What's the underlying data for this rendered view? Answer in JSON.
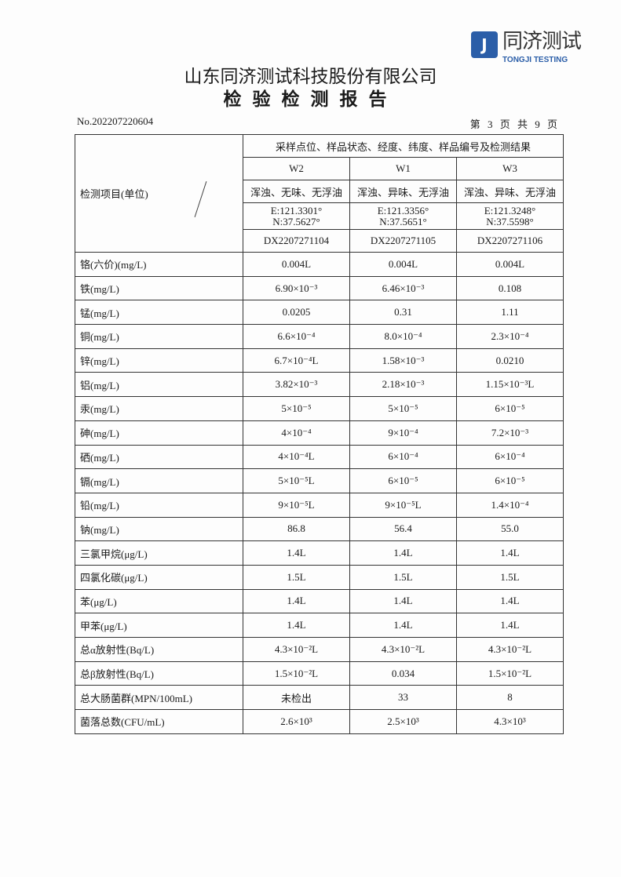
{
  "logo": {
    "mark": "J",
    "name_cn": "同济测试",
    "name_en": "TONGJI TESTING"
  },
  "company": "山东同济测试科技股份有限公司",
  "title": "检验检测报告",
  "report_no": "No.202207220604",
  "page_info": "第 3 页 共 9 页",
  "table": {
    "item_header": "检测项目(单位)",
    "group_header": "采样点位、样品状态、经度、纬度、样品编号及检测结果",
    "samples": [
      {
        "point": "W2",
        "state": "浑浊、无味、无浮油",
        "lon": "E:121.3301°",
        "lat": "N:37.5627°",
        "id": "DX2207271104"
      },
      {
        "point": "W1",
        "state": "浑浊、异味、无浮油",
        "lon": "E:121.3356°",
        "lat": "N:37.5651°",
        "id": "DX2207271105"
      },
      {
        "point": "W3",
        "state": "浑浊、异味、无浮油",
        "lon": "E:121.3248°",
        "lat": "N:37.5598°",
        "id": "DX2207271106"
      }
    ],
    "rows": [
      {
        "item": "铬(六价)(mg/L)",
        "values": [
          "0.004L",
          "0.004L",
          "0.004L"
        ]
      },
      {
        "item": "铁(mg/L)",
        "values": [
          "6.90×10⁻³",
          "6.46×10⁻³",
          "0.108"
        ]
      },
      {
        "item": "锰(mg/L)",
        "values": [
          "0.0205",
          "0.31",
          "1.11"
        ]
      },
      {
        "item": "铜(mg/L)",
        "values": [
          "6.6×10⁻⁴",
          "8.0×10⁻⁴",
          "2.3×10⁻⁴"
        ]
      },
      {
        "item": "锌(mg/L)",
        "values": [
          "6.7×10⁻⁴L",
          "1.58×10⁻³",
          "0.0210"
        ]
      },
      {
        "item": "铝(mg/L)",
        "values": [
          "3.82×10⁻³",
          "2.18×10⁻³",
          "1.15×10⁻³L"
        ]
      },
      {
        "item": "汞(mg/L)",
        "values": [
          "5×10⁻⁵",
          "5×10⁻⁵",
          "6×10⁻⁵"
        ]
      },
      {
        "item": "砷(mg/L)",
        "values": [
          "4×10⁻⁴",
          "9×10⁻⁴",
          "7.2×10⁻³"
        ]
      },
      {
        "item": "硒(mg/L)",
        "values": [
          "4×10⁻⁴L",
          "6×10⁻⁴",
          "6×10⁻⁴"
        ]
      },
      {
        "item": "镉(mg/L)",
        "values": [
          "5×10⁻⁵L",
          "6×10⁻⁵",
          "6×10⁻⁵"
        ]
      },
      {
        "item": "铅(mg/L)",
        "values": [
          "9×10⁻⁵L",
          "9×10⁻⁵L",
          "1.4×10⁻⁴"
        ]
      },
      {
        "item": "钠(mg/L)",
        "values": [
          "86.8",
          "56.4",
          "55.0"
        ]
      },
      {
        "item": "三氯甲烷(μg/L)",
        "values": [
          "1.4L",
          "1.4L",
          "1.4L"
        ]
      },
      {
        "item": "四氯化碳(μg/L)",
        "values": [
          "1.5L",
          "1.5L",
          "1.5L"
        ]
      },
      {
        "item": "苯(μg/L)",
        "values": [
          "1.4L",
          "1.4L",
          "1.4L"
        ]
      },
      {
        "item": "甲苯(μg/L)",
        "values": [
          "1.4L",
          "1.4L",
          "1.4L"
        ]
      },
      {
        "item": "总α放射性(Bq/L)",
        "values": [
          "4.3×10⁻²L",
          "4.3×10⁻²L",
          "4.3×10⁻²L"
        ]
      },
      {
        "item": "总β放射性(Bq/L)",
        "values": [
          "1.5×10⁻²L",
          "0.034",
          "1.5×10⁻²L"
        ]
      },
      {
        "item": "总大肠菌群(MPN/100mL)",
        "values": [
          "未检出",
          "33",
          "8"
        ]
      },
      {
        "item": "菌落总数(CFU/mL)",
        "values": [
          "2.6×10³",
          "2.5×10³",
          "4.3×10³"
        ]
      }
    ]
  }
}
